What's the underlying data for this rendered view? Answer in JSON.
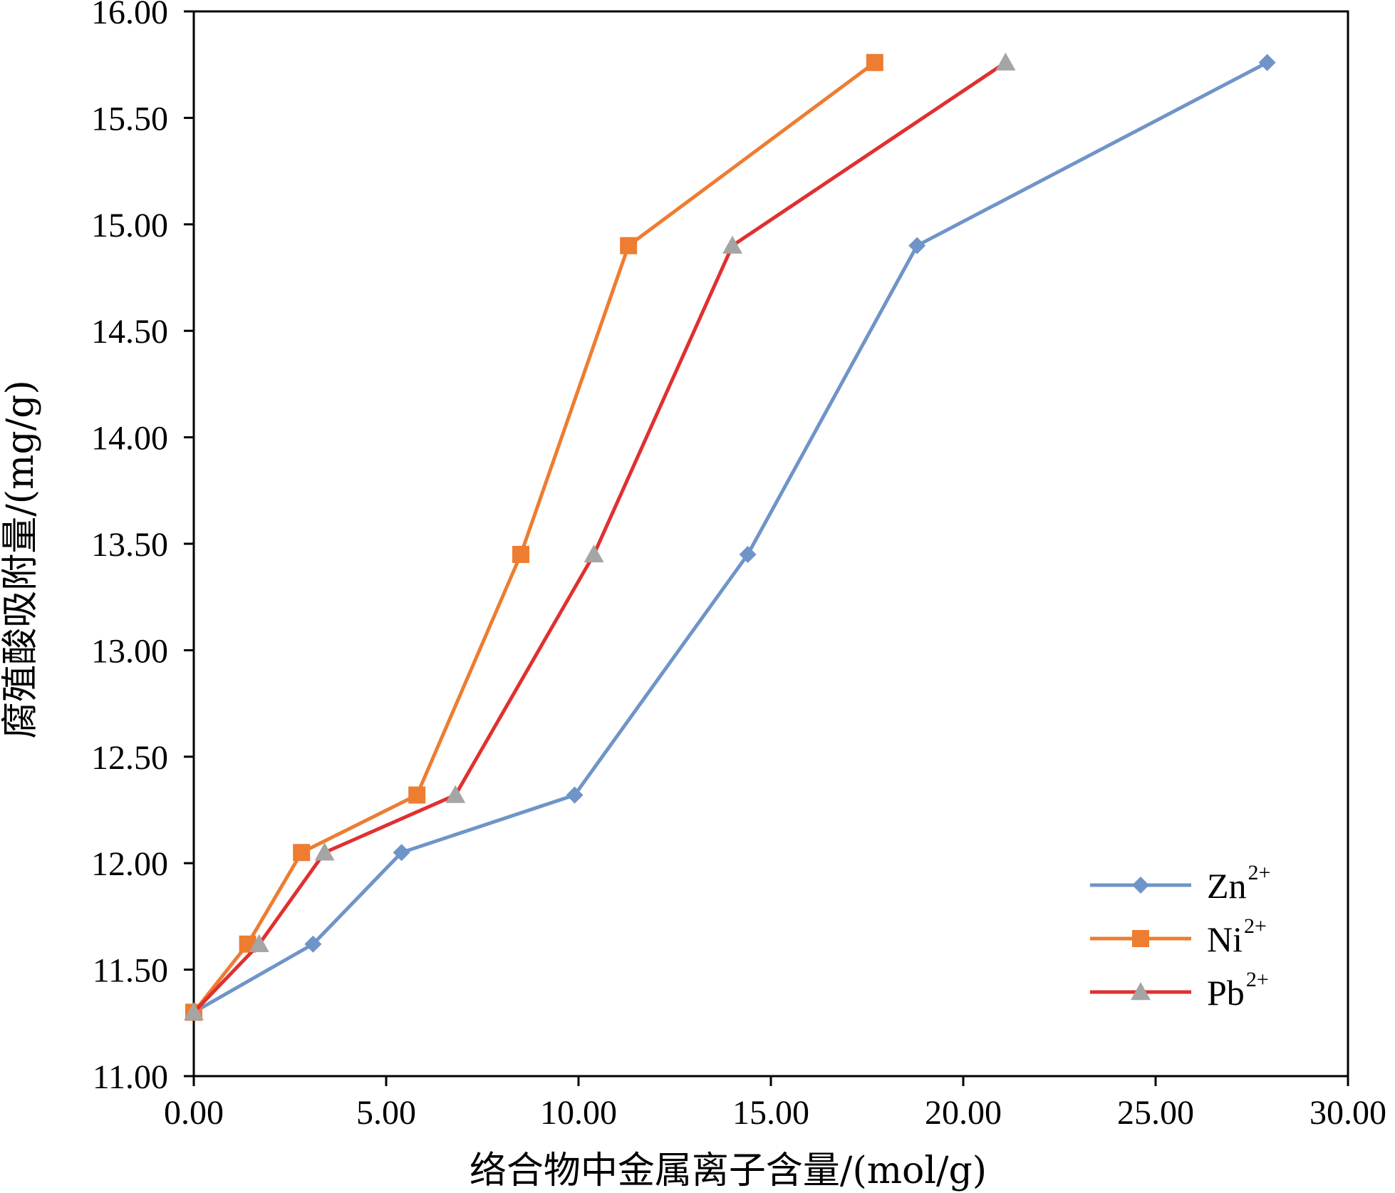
{
  "chart_data": {
    "type": "line",
    "xlabel": "络合物中金属离子含量/(mol/g)",
    "ylabel": "腐殖酸吸附量/(mg/g)",
    "xlim": [
      0,
      30
    ],
    "ylim": [
      11,
      16
    ],
    "x_ticks": [
      "0.00",
      "5.00",
      "10.00",
      "15.00",
      "20.00",
      "25.00",
      "30.00"
    ],
    "y_ticks": [
      "11.00",
      "11.50",
      "12.00",
      "12.50",
      "13.00",
      "13.50",
      "14.00",
      "14.50",
      "15.00",
      "15.50",
      "16.00"
    ],
    "legend_position": "bottom-right",
    "grid": false,
    "series": [
      {
        "name": "Zn",
        "name_sup": "2+",
        "color": "#6f94c8",
        "marker": "diamond",
        "x": [
          0.0,
          3.1,
          5.4,
          9.9,
          14.4,
          18.8,
          27.9
        ],
        "y": [
          11.3,
          11.62,
          12.05,
          12.32,
          13.45,
          14.9,
          15.76
        ]
      },
      {
        "name": "Ni",
        "name_sup": "2+",
        "color": "#ed7d31",
        "marker": "square",
        "x": [
          0.0,
          1.4,
          2.8,
          5.8,
          8.5,
          11.3,
          17.7
        ],
        "y": [
          11.3,
          11.62,
          12.05,
          12.32,
          13.45,
          14.9,
          15.76
        ]
      },
      {
        "name": "Pb",
        "name_sup": "2+",
        "color": "#e03030",
        "marker_color": "#a5a5a5",
        "marker": "triangle",
        "x": [
          0.0,
          1.7,
          3.4,
          6.8,
          10.4,
          14.0,
          21.1
        ],
        "y": [
          11.3,
          11.62,
          12.05,
          12.32,
          13.45,
          14.9,
          15.76
        ]
      }
    ]
  }
}
